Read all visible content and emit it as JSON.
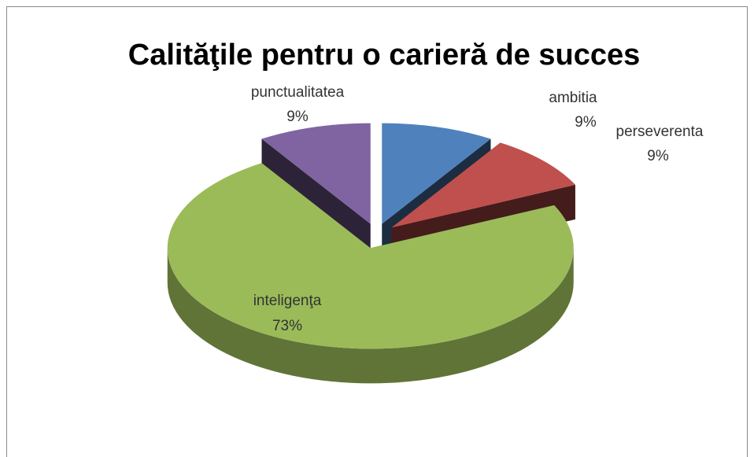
{
  "chart_data": {
    "type": "pie",
    "title": "Calităţile pentru o carieră de succes",
    "categories": [
      "ambitia",
      "perseverenta",
      "inteligenţa",
      "punctualitatea"
    ],
    "values": [
      9,
      9,
      73,
      9
    ],
    "value_labels": [
      "9%",
      "9%",
      "73%",
      "9%"
    ],
    "colors": [
      "#4f81bd",
      "#c0504d",
      "#9bbb59",
      "#8064a2"
    ],
    "three_d": true,
    "exploded": true
  }
}
